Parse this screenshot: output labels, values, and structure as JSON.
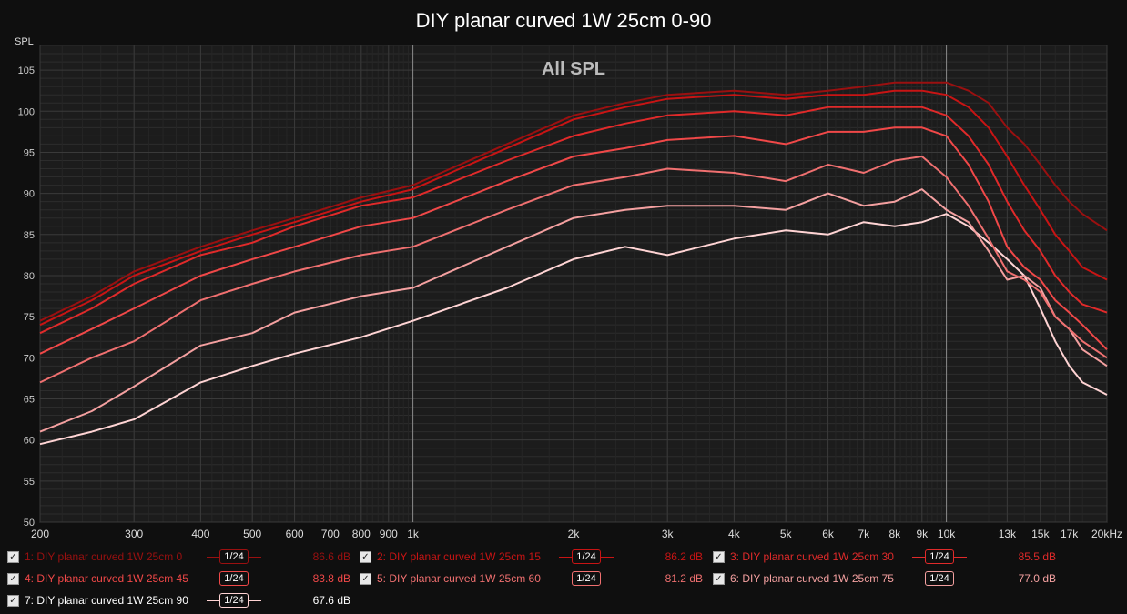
{
  "title": "DIY planar curved 1W 25cm 0-90",
  "chart_data": {
    "type": "line",
    "title": "DIY planar curved 1W 25cm 0-90",
    "subtitle": "All SPL",
    "ylabel": "SPL",
    "xlabel": "",
    "x_scale": "log",
    "xlim": [
      200,
      20000
    ],
    "ylim": [
      50,
      108
    ],
    "yticks": [
      50,
      55,
      60,
      65,
      70,
      75,
      80,
      85,
      90,
      95,
      100,
      105
    ],
    "xticks": [
      {
        "v": 200,
        "t": "200"
      },
      {
        "v": 300,
        "t": "300"
      },
      {
        "v": 400,
        "t": "400"
      },
      {
        "v": 500,
        "t": "500"
      },
      {
        "v": 600,
        "t": "600"
      },
      {
        "v": 700,
        "t": "700"
      },
      {
        "v": 800,
        "t": "800"
      },
      {
        "v": 900,
        "t": "900"
      },
      {
        "v": 1000,
        "t": "1k"
      },
      {
        "v": 2000,
        "t": "2k"
      },
      {
        "v": 3000,
        "t": "3k"
      },
      {
        "v": 4000,
        "t": "4k"
      },
      {
        "v": 5000,
        "t": "5k"
      },
      {
        "v": 6000,
        "t": "6k"
      },
      {
        "v": 7000,
        "t": "7k"
      },
      {
        "v": 8000,
        "t": "8k"
      },
      {
        "v": 9000,
        "t": "9k"
      },
      {
        "v": 10000,
        "t": "10k"
      },
      {
        "v": 13000,
        "t": "13k"
      },
      {
        "v": 15000,
        "t": "15k"
      },
      {
        "v": 17000,
        "t": "17k"
      },
      {
        "v": 20000,
        "t": "20kHz"
      }
    ],
    "grid": true,
    "legend_position": "bottom",
    "x": [
      200,
      250,
      300,
      400,
      500,
      600,
      800,
      1000,
      1500,
      2000,
      2500,
      3000,
      4000,
      5000,
      6000,
      7000,
      8000,
      9000,
      10000,
      11000,
      12000,
      13000,
      14000,
      15000,
      16000,
      17000,
      18000,
      20000
    ],
    "series": [
      {
        "name": "1: DIY planar curved 1W 25cm 0",
        "color": "#9a1010",
        "avg": "86.6 dB",
        "values": [
          74.5,
          77.5,
          80.5,
          83.5,
          85.5,
          87.0,
          89.5,
          91.0,
          96.0,
          99.5,
          101.0,
          102.0,
          102.5,
          102.0,
          102.5,
          103.0,
          103.5,
          103.5,
          103.5,
          102.5,
          101.0,
          98.0,
          96.0,
          93.5,
          91.0,
          89.0,
          87.5,
          85.5
        ]
      },
      {
        "name": "2: DIY planar curved 1W 25cm 15",
        "color": "#c81414",
        "avg": "86.2 dB",
        "values": [
          74.0,
          77.0,
          80.0,
          83.0,
          85.0,
          86.5,
          89.0,
          90.5,
          95.5,
          99.0,
          100.5,
          101.5,
          102.0,
          101.5,
          102.0,
          102.0,
          102.5,
          102.5,
          102.0,
          100.5,
          98.0,
          94.5,
          91.0,
          88.0,
          85.0,
          83.0,
          81.0,
          79.5
        ]
      },
      {
        "name": "3: DIY planar curved 1W 25cm 30",
        "color": "#e02a2a",
        "avg": "85.5 dB",
        "values": [
          73.0,
          76.0,
          79.0,
          82.5,
          84.0,
          86.0,
          88.5,
          89.5,
          94.0,
          97.0,
          98.5,
          99.5,
          100.0,
          99.5,
          100.5,
          100.5,
          100.5,
          100.5,
          99.5,
          97.0,
          93.5,
          89.0,
          85.5,
          83.0,
          80.0,
          78.0,
          76.5,
          75.5
        ]
      },
      {
        "name": "4: DIY planar curved 1W 25cm 45",
        "color": "#f04848",
        "avg": "83.8 dB",
        "values": [
          70.5,
          73.5,
          76.0,
          80.0,
          82.0,
          83.5,
          86.0,
          87.0,
          91.5,
          94.5,
          95.5,
          96.5,
          97.0,
          96.0,
          97.5,
          97.5,
          98.0,
          98.0,
          97.0,
          93.5,
          89.0,
          83.5,
          81.0,
          79.5,
          77.0,
          75.5,
          74.0,
          71.0
        ]
      },
      {
        "name": "5: DIY planar curved 1W 25cm 60",
        "color": "#f07070",
        "avg": "81.2 dB",
        "values": [
          67.0,
          70.0,
          72.0,
          77.0,
          79.0,
          80.5,
          82.5,
          83.5,
          88.0,
          91.0,
          92.0,
          93.0,
          92.5,
          91.5,
          93.5,
          92.5,
          94.0,
          94.5,
          92.0,
          88.5,
          84.5,
          80.5,
          79.5,
          78.0,
          75.0,
          73.5,
          72.0,
          70.0
        ]
      },
      {
        "name": "6: DIY planar curved 1W 25cm 75",
        "color": "#f4a0a0",
        "avg": "77.0 dB",
        "values": [
          61.0,
          63.5,
          66.5,
          71.5,
          73.0,
          75.5,
          77.5,
          78.5,
          83.5,
          87.0,
          88.0,
          88.5,
          88.5,
          88.0,
          90.0,
          88.5,
          89.0,
          90.5,
          88.0,
          86.5,
          83.0,
          79.5,
          80.0,
          78.5,
          75.0,
          73.5,
          71.0,
          69.0
        ]
      },
      {
        "name": "7: DIY planar curved 1W 25cm 90",
        "color": "#ffd4d4",
        "avg": "67.6 dB",
        "values": [
          59.5,
          61.0,
          62.5,
          67.0,
          69.0,
          70.5,
          72.5,
          74.5,
          78.5,
          82.0,
          83.5,
          82.5,
          84.5,
          85.5,
          85.0,
          86.5,
          86.0,
          86.5,
          87.5,
          86.0,
          84.0,
          82.0,
          80.0,
          76.0,
          72.0,
          69.0,
          67.0,
          65.5
        ]
      }
    ]
  },
  "legend": {
    "smoothing_label": "1/24"
  }
}
